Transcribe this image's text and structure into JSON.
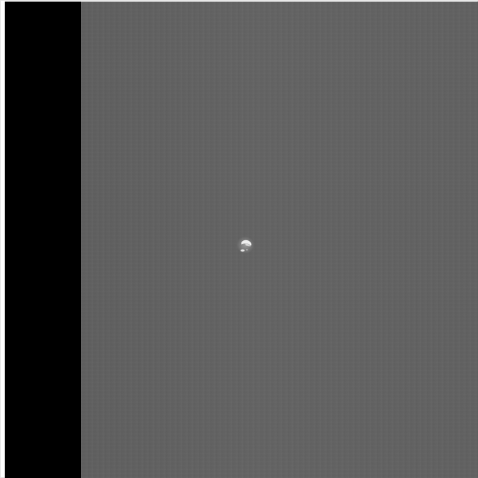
{
  "image": {
    "subject": "dark-field-with-bright-speck",
    "colors": {
      "band": "#000000",
      "field": "#616161",
      "speck": "#ededed",
      "frame": "#ffffff"
    }
  }
}
